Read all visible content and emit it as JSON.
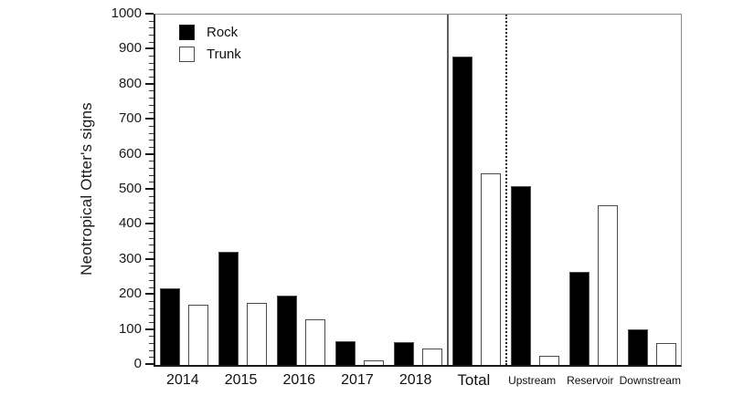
{
  "figure": {
    "ylabel": "Neotropical Otter's signs"
  },
  "legend": {
    "items": [
      {
        "label": "Rock",
        "fill": "#000000",
        "border": "#1a1a1a"
      },
      {
        "label": "Trunk",
        "fill": "#ffffff",
        "border": "#4a4a4a"
      }
    ]
  },
  "chart_data": {
    "type": "bar",
    "title": "",
    "xlabel": "",
    "ylabel": "Neotropical Otter's signs",
    "categories": [
      "2014",
      "2015",
      "2016",
      "2017",
      "2018",
      "Total",
      "Upstream",
      "Reservoir",
      "Downstream"
    ],
    "category_styles": [
      "year",
      "year",
      "year",
      "year",
      "year",
      "total",
      "area",
      "area",
      "area"
    ],
    "series": [
      {
        "name": "Rock",
        "fill": "#000000",
        "border": "#4d4d4d",
        "values": [
          218,
          322,
          198,
          68,
          66,
          880,
          510,
          265,
          102
        ]
      },
      {
        "name": "Trunk",
        "fill": "#ffffff",
        "border": "#4a4a4a",
        "values": [
          173,
          177,
          130,
          13,
          48,
          548,
          25,
          457,
          62
        ]
      }
    ],
    "ylim": [
      0,
      1000
    ],
    "ytick_step": 100,
    "yminor_step": 20,
    "ytick_labels": [
      "0",
      "100",
      "200",
      "300",
      "400",
      "500",
      "600",
      "700",
      "800",
      "900",
      "1000"
    ],
    "grid": false,
    "legend_position": "top-left-inside",
    "separators": [
      {
        "after_category": "2018",
        "style": "solid"
      },
      {
        "after_category": "Total",
        "style": "dotted"
      }
    ]
  }
}
